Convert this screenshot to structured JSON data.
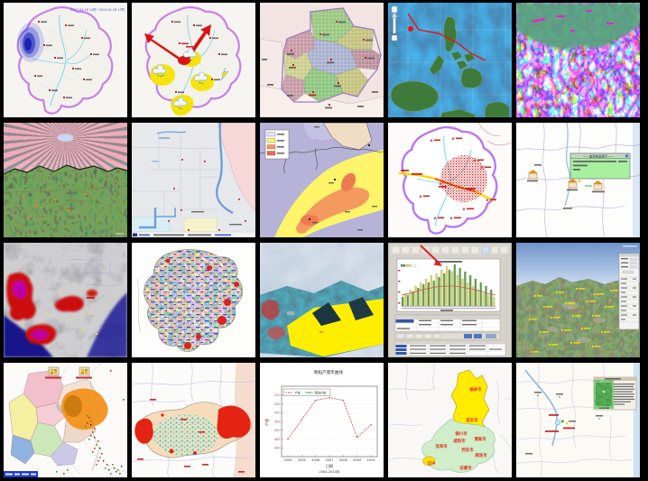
{
  "page": {
    "background": "#000000",
    "description_tag": "map-thumbnail-gallery"
  },
  "grid": {
    "rows": 4,
    "cols": 5,
    "tile_count": 20
  },
  "tiles": {
    "rain_forecast": {
      "name": "county-rainfall-forecast-map",
      "timestamp": "2012-04-16 11时~2012-04-16 17时"
    },
    "weather_warning": {
      "name": "county-weather-warning-map"
    },
    "gridded_admin": {
      "name": "gridded-administrative-map"
    },
    "typhoon_track": {
      "name": "philippines-typhoon-track-map"
    },
    "classified_rs": {
      "name": "classified-remote-sensing-image"
    },
    "terrain_flyby": {
      "name": "3d-terrain-flyby-view"
    },
    "landuse_gis": {
      "name": "gis-landuse-editor-view"
    },
    "precip_isoline": {
      "name": "precipitation-isoline-map"
    },
    "hail_track": {
      "name": "county-hail-cell-track-map"
    },
    "station_popup": {
      "name": "station-info-popup-map",
      "popup_title": "——监测信息提示——"
    },
    "ir_satellite": {
      "name": "infrared-satellite-cloud-image"
    },
    "geology": {
      "name": "provincial-geology-map"
    },
    "flood_3d": {
      "name": "3d-flood-inundation-view"
    },
    "analysis_app": {
      "name": "statistics-analysis-application"
    },
    "earth_3d": {
      "name": "3d-terrain-labeled-points-view"
    },
    "coastal_monitor": {
      "name": "coastal-monitoring-map"
    },
    "drought": {
      "name": "drought-distribution-map"
    },
    "grain_chart": {
      "name": "grain-yield-line-chart"
    },
    "shaanxi": {
      "name": "shaanxi-city-map",
      "cities": [
        "榆林市",
        "延安市",
        "铜川市",
        "咸阳市",
        "渭南市",
        "宝鸡市",
        "西安市",
        "商洛市",
        "汉中",
        "安康市"
      ]
    },
    "scenic_popup": {
      "name": "scenic-spot-photo-popup-map"
    }
  },
  "chart_data": [
    {
      "type": "line",
      "title": "晚稻产量年曲线",
      "categories": [
        "2004",
        "2005",
        "2006",
        "2007",
        "2008",
        "2009",
        "2010"
      ],
      "series": [
        {
          "name": "产量",
          "color": "#e06060",
          "values": [
            485,
            496,
            507,
            508.5,
            507,
            486,
            493
          ]
        },
        {
          "name": "预测产量",
          "color": "#40a040",
          "values": []
        }
      ],
      "xlabel": "日期",
      "xlabel_sub": "2004-2010年",
      "ylabel": "产量",
      "ylim": [
        475,
        515
      ],
      "yticks": [
        480,
        485,
        490,
        495,
        500,
        505,
        510
      ],
      "grid": true,
      "legend_position": "top-left"
    },
    {
      "type": "bar",
      "title": "",
      "values": [
        10,
        14,
        12,
        18,
        16,
        22,
        20,
        26,
        24,
        30,
        26,
        34,
        28,
        36,
        32,
        40,
        36,
        44,
        40,
        38,
        46,
        34,
        42,
        30,
        38,
        26,
        34,
        22,
        30,
        18,
        26,
        14,
        22,
        12,
        18,
        10
      ],
      "colors": [
        "#5f9e46",
        "#ddd76e"
      ],
      "trend": [
        12,
        14,
        17,
        19,
        21,
        22,
        22,
        21,
        19,
        17,
        14,
        12
      ],
      "trend_color": "#d05050"
    }
  ]
}
